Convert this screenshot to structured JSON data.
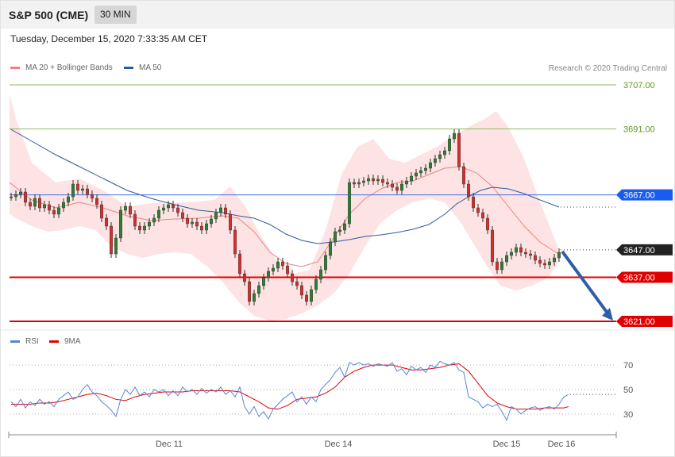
{
  "header": {
    "title": "S&P 500 (CME)",
    "interval": "30 MIN"
  },
  "timestamp": "Tuesday, December 15, 2020 7:33:35 AM CET",
  "legend": {
    "ma20": {
      "label": "MA 20 + Bollinger Bands",
      "color": "#f08080"
    },
    "ma50": {
      "label": "MA 50",
      "color": "#2c5aa0"
    },
    "rsi": {
      "label": "RSI",
      "color": "#5b84d6"
    },
    "ma9": {
      "label": "9MA",
      "color": "#e00000"
    }
  },
  "credit": "Research © 2020 Trading Central",
  "chart_data": [
    {
      "type": "candlestick",
      "ylim": [
        3619,
        3714
      ],
      "x_labels": [
        "Dec 11",
        "Dec 14",
        "Dec 15",
        "Dec 16"
      ],
      "levels": [
        {
          "value": 3707,
          "label": "3707.00",
          "kind": "resistance-green"
        },
        {
          "value": 3691,
          "label": "3691.00",
          "kind": "resistance-green"
        },
        {
          "value": 3667,
          "label": "3667.00",
          "kind": "pivot-blue"
        },
        {
          "value": 3647,
          "label": "3647.00",
          "kind": "last-price"
        },
        {
          "value": 3637,
          "label": "3637.00",
          "kind": "support-red"
        },
        {
          "value": 3621,
          "label": "3621.00",
          "kind": "support-red"
        }
      ],
      "forecast_arrow": {
        "from": 3647,
        "to": 3621
      },
      "colors": {
        "up": "#2e7d32",
        "down": "#d32f2f",
        "band": "#fde0e0",
        "ma20": "#f08080",
        "ma50": "#2c5aa0"
      }
    },
    {
      "type": "line",
      "name": "RSI",
      "ylim": [
        15,
        83
      ],
      "grid_levels": [
        70,
        50,
        30
      ],
      "rsi_points": [
        [
          0,
          40
        ],
        [
          6,
          36
        ],
        [
          12,
          42
        ],
        [
          18,
          35
        ],
        [
          24,
          40
        ],
        [
          30,
          37
        ],
        [
          36,
          42
        ],
        [
          42,
          38
        ],
        [
          48,
          40
        ],
        [
          54,
          36
        ],
        [
          60,
          42
        ],
        [
          66,
          45
        ],
        [
          72,
          48
        ],
        [
          78,
          42
        ],
        [
          84,
          44
        ],
        [
          90,
          50
        ],
        [
          96,
          54
        ],
        [
          102,
          48
        ],
        [
          108,
          45
        ],
        [
          114,
          40
        ],
        [
          120,
          37
        ],
        [
          126,
          33
        ],
        [
          132,
          28
        ],
        [
          138,
          42
        ],
        [
          144,
          50
        ],
        [
          150,
          46
        ],
        [
          156,
          52
        ],
        [
          162,
          45
        ],
        [
          168,
          48
        ],
        [
          174,
          44
        ],
        [
          180,
          50
        ],
        [
          186,
          48
        ],
        [
          192,
          50
        ],
        [
          198,
          45
        ],
        [
          204,
          49
        ],
        [
          210,
          45
        ],
        [
          216,
          52
        ],
        [
          222,
          48
        ],
        [
          228,
          50
        ],
        [
          234,
          46
        ],
        [
          240,
          51
        ],
        [
          246,
          47
        ],
        [
          252,
          50
        ],
        [
          258,
          48
        ],
        [
          264,
          52
        ],
        [
          270,
          46
        ],
        [
          276,
          49
        ],
        [
          282,
          44
        ],
        [
          288,
          52
        ],
        [
          294,
          36
        ],
        [
          300,
          30
        ],
        [
          306,
          36
        ],
        [
          312,
          28
        ],
        [
          318,
          32
        ],
        [
          324,
          26
        ],
        [
          330,
          34
        ],
        [
          336,
          38
        ],
        [
          342,
          42
        ],
        [
          348,
          45
        ],
        [
          354,
          48
        ],
        [
          360,
          40
        ],
        [
          366,
          44
        ],
        [
          372,
          38
        ],
        [
          378,
          44
        ],
        [
          384,
          40
        ],
        [
          390,
          50
        ],
        [
          396,
          54
        ],
        [
          402,
          58
        ],
        [
          408,
          64
        ],
        [
          414,
          68
        ],
        [
          420,
          60
        ],
        [
          426,
          72
        ],
        [
          432,
          70
        ],
        [
          438,
          72
        ],
        [
          444,
          70
        ],
        [
          450,
          71
        ],
        [
          456,
          69
        ],
        [
          462,
          71
        ],
        [
          468,
          70
        ],
        [
          474,
          69
        ],
        [
          480,
          72
        ],
        [
          486,
          65
        ],
        [
          492,
          67
        ],
        [
          498,
          62
        ],
        [
          504,
          69
        ],
        [
          510,
          66
        ],
        [
          516,
          68
        ],
        [
          522,
          64
        ],
        [
          528,
          70
        ],
        [
          534,
          68
        ],
        [
          540,
          73
        ],
        [
          546,
          71
        ],
        [
          552,
          70
        ],
        [
          558,
          72
        ],
        [
          564,
          66
        ],
        [
          570,
          64
        ],
        [
          576,
          44
        ],
        [
          582,
          42
        ],
        [
          588,
          40
        ],
        [
          594,
          35
        ],
        [
          600,
          38
        ],
        [
          606,
          36
        ],
        [
          612,
          38
        ],
        [
          618,
          32
        ],
        [
          624,
          25
        ],
        [
          630,
          36
        ],
        [
          636,
          34
        ],
        [
          642,
          30
        ],
        [
          648,
          33
        ],
        [
          654,
          35
        ],
        [
          660,
          36
        ],
        [
          666,
          33
        ],
        [
          672,
          35
        ],
        [
          678,
          36
        ],
        [
          684,
          34
        ],
        [
          690,
          38
        ],
        [
          696,
          44
        ],
        [
          702,
          46
        ]
      ],
      "ma9_points": [
        [
          0,
          38
        ],
        [
          12,
          38
        ],
        [
          24,
          38
        ],
        [
          36,
          39
        ],
        [
          48,
          39
        ],
        [
          60,
          40
        ],
        [
          72,
          42
        ],
        [
          84,
          44
        ],
        [
          96,
          46
        ],
        [
          108,
          47
        ],
        [
          120,
          45
        ],
        [
          132,
          42
        ],
        [
          144,
          41
        ],
        [
          156,
          44
        ],
        [
          168,
          46
        ],
        [
          180,
          47
        ],
        [
          192,
          48
        ],
        [
          204,
          48
        ],
        [
          216,
          48
        ],
        [
          228,
          49
        ],
        [
          240,
          49
        ],
        [
          252,
          49
        ],
        [
          264,
          49
        ],
        [
          276,
          49
        ],
        [
          288,
          48
        ],
        [
          300,
          44
        ],
        [
          312,
          40
        ],
        [
          324,
          35
        ],
        [
          336,
          34
        ],
        [
          348,
          37
        ],
        [
          360,
          42
        ],
        [
          372,
          43
        ],
        [
          384,
          44
        ],
        [
          396,
          47
        ],
        [
          408,
          52
        ],
        [
          420,
          60
        ],
        [
          432,
          65
        ],
        [
          444,
          68
        ],
        [
          456,
          70
        ],
        [
          468,
          70
        ],
        [
          480,
          70
        ],
        [
          492,
          68
        ],
        [
          504,
          66
        ],
        [
          516,
          66
        ],
        [
          528,
          67
        ],
        [
          540,
          68
        ],
        [
          552,
          70
        ],
        [
          564,
          71
        ],
        [
          576,
          65
        ],
        [
          588,
          55
        ],
        [
          600,
          45
        ],
        [
          612,
          39
        ],
        [
          624,
          36
        ],
        [
          636,
          34
        ],
        [
          648,
          34
        ],
        [
          660,
          34
        ],
        [
          672,
          35
        ],
        [
          684,
          35
        ],
        [
          696,
          35
        ],
        [
          702,
          36
        ]
      ]
    }
  ]
}
